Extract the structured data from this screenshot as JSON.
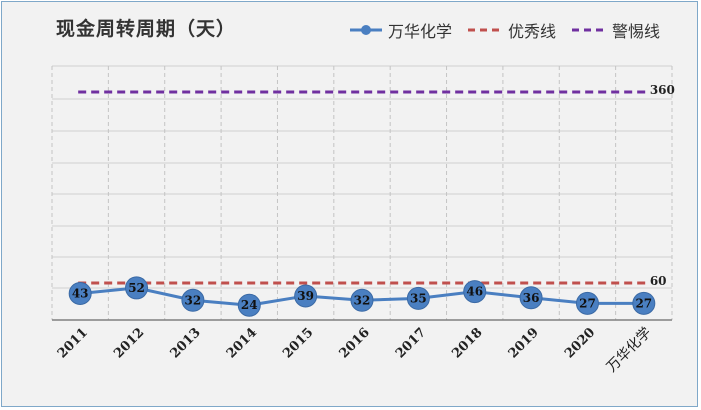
{
  "chart_data": {
    "type": "line",
    "title": "现金周转周期（天）",
    "categories": [
      "2011",
      "2012",
      "2013",
      "2014",
      "2015",
      "2016",
      "2017",
      "2018",
      "2019",
      "2020",
      "万华化学"
    ],
    "series": [
      {
        "name": "万华化学",
        "style": "line-marker",
        "color": "#4a7fc1",
        "values": [
          43,
          52,
          32,
          24,
          39,
          32,
          35,
          46,
          36,
          27,
          27
        ]
      },
      {
        "name": "优秀线",
        "style": "dashed",
        "color": "#c0504d",
        "values": [
          60,
          60,
          60,
          60,
          60,
          60,
          60,
          60,
          60,
          60,
          60
        ]
      },
      {
        "name": "警惕线",
        "style": "dashed",
        "color": "#7030a0",
        "values": [
          360,
          360,
          360,
          360,
          360,
          360,
          360,
          360,
          360,
          360,
          360
        ]
      }
    ],
    "end_labels": [
      "360",
      "60"
    ],
    "grid": true,
    "legend_position": "top-right"
  }
}
